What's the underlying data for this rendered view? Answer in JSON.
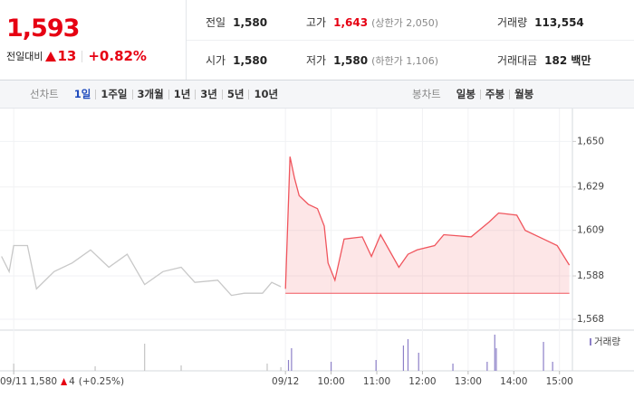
{
  "header": {
    "price": "1,593",
    "change_label": "전일대비",
    "change": "13",
    "change_rate": "+0.82%",
    "stats": [
      {
        "label": "전일",
        "value": "1,580"
      },
      {
        "label": "고가",
        "value": "1,643",
        "note": "(상한가 2,050)",
        "color": "#e60012"
      },
      {
        "label": "거래량",
        "value": "113,554"
      },
      {
        "label": "시가",
        "value": "1,580"
      },
      {
        "label": "저가",
        "value": "1,580",
        "note": "(하한가 1,106)"
      },
      {
        "label": "거래대금",
        "value": "182 백만"
      }
    ]
  },
  "toolbar": {
    "line_label": "선차트",
    "line_periods": [
      "1일",
      "1주일",
      "3개월",
      "1년",
      "3년",
      "5년",
      "10년"
    ],
    "selected_index": 0,
    "candle_label": "봉차트",
    "candle_periods": [
      "일봉",
      "주봉",
      "월봉"
    ]
  },
  "chart_data": [
    {
      "type": "line",
      "xlim": [
        -375,
        377
      ],
      "ylim": [
        1563,
        1661
      ],
      "xticks": [
        {
          "value": -357,
          "label": "09/11"
        },
        {
          "value": 0,
          "label": "09/12"
        },
        {
          "value": 60,
          "label": "10:00"
        },
        {
          "value": 120,
          "label": "11:00"
        },
        {
          "value": 180,
          "label": "12:00"
        },
        {
          "value": 240,
          "label": "13:00"
        },
        {
          "value": 300,
          "label": "14:00"
        },
        {
          "value": 360,
          "label": "15:00"
        }
      ],
      "yticks": [
        {
          "value": 1568,
          "label": "1,568"
        },
        {
          "value": 1588,
          "label": "1,588"
        },
        {
          "value": 1609,
          "label": "1,609"
        },
        {
          "value": 1629,
          "label": "1,629"
        },
        {
          "value": 1650,
          "label": "1,650"
        }
      ],
      "grid": true,
      "series": [
        {
          "color": "#c8c8c8",
          "x": [
            -373,
            -363,
            -357,
            -339,
            -327,
            -304,
            -280,
            -256,
            -232,
            -208,
            -185,
            -161,
            -137,
            -119,
            -89,
            -71,
            -54,
            -30,
            -18,
            -6
          ],
          "values": [
            1597,
            1590,
            1602,
            1602,
            1582,
            1590,
            1594,
            1600,
            1592,
            1598,
            1584,
            1590,
            1592,
            1585,
            1586,
            1579,
            1580,
            1580,
            1585,
            1583
          ]
        },
        {
          "color": "#f0555d",
          "fill_to": 1580,
          "x": [
            0,
            6,
            12,
            18,
            30,
            42,
            51,
            56,
            65,
            77,
            101,
            113,
            125,
            149,
            161,
            173,
            196,
            208,
            244,
            268,
            280,
            304,
            315,
            339,
            357,
            373
          ],
          "values": [
            1582,
            1643,
            1633,
            1625,
            1621,
            1619,
            1611,
            1594,
            1586,
            1605,
            1606,
            1597,
            1607,
            1592,
            1598,
            1600,
            1602,
            1607,
            1606,
            1613,
            1617,
            1616,
            1609,
            1605,
            1602,
            1593
          ]
        }
      ],
      "annotation": {
        "price": "1,580",
        "change": "4",
        "rate": "(+0.25%)"
      }
    },
    {
      "type": "bar",
      "legend": "거래량",
      "xlim": [
        -375,
        377
      ],
      "ylim": [
        0,
        40
      ],
      "series": [
        {
          "color": "#c4c4c4",
          "x": [
            -357,
            -250,
            -185,
            -137,
            -24,
            -6
          ],
          "values": [
            8,
            5,
            30,
            6,
            8,
            4
          ]
        },
        {
          "color": "#8d80c8",
          "x": [
            4,
            8,
            60,
            119,
            155,
            161,
            175,
            220,
            265,
            275,
            277,
            339,
            351
          ],
          "values": [
            12,
            25,
            10,
            12,
            28,
            35,
            20,
            8,
            10,
            40,
            25,
            32,
            10
          ]
        }
      ]
    }
  ]
}
